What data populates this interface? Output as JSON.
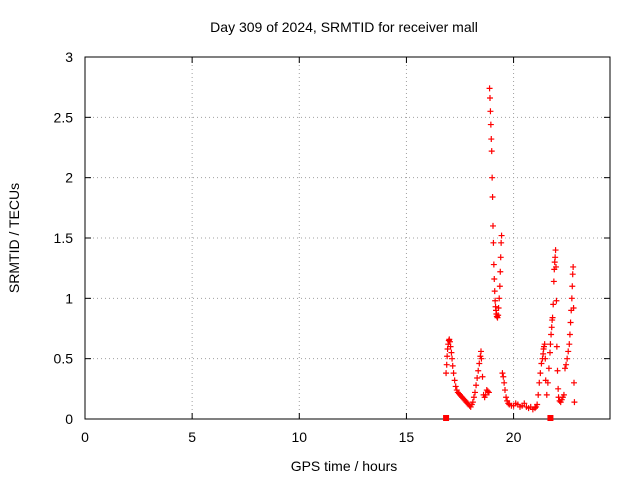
{
  "chart_data": {
    "type": "scatter",
    "title": "Day 309 of 2024, SRMTID for receiver mall",
    "xlabel": "GPS time / hours",
    "ylabel": "SRMTID / TECUs",
    "xlim": [
      0,
      24.5
    ],
    "ylim": [
      0,
      3
    ],
    "xticks": [
      0,
      5,
      10,
      15,
      20
    ],
    "xtick_labels": [
      "0",
      "5",
      "10",
      "15",
      "20"
    ],
    "yticks": [
      0,
      0.5,
      1,
      1.5,
      2,
      2.5,
      3
    ],
    "ytick_labels": [
      "0",
      "0.5",
      "1",
      "1.5",
      "2",
      "2.5",
      "3"
    ],
    "grid": true,
    "marker": "+",
    "series_color": "#ff0000",
    "series": [
      {
        "name": "SRMTID",
        "points": [
          [
            16.85,
            0.38
          ],
          [
            16.88,
            0.45
          ],
          [
            16.9,
            0.52
          ],
          [
            16.92,
            0.58
          ],
          [
            16.95,
            0.62
          ],
          [
            16.98,
            0.65
          ],
          [
            17.0,
            0.66
          ],
          [
            17.03,
            0.64
          ],
          [
            17.06,
            0.6
          ],
          [
            17.1,
            0.55
          ],
          [
            17.13,
            0.5
          ],
          [
            17.16,
            0.44
          ],
          [
            17.2,
            0.38
          ],
          [
            17.25,
            0.32
          ],
          [
            17.3,
            0.27
          ],
          [
            17.35,
            0.24
          ],
          [
            17.4,
            0.22
          ],
          [
            17.45,
            0.21
          ],
          [
            17.5,
            0.2
          ],
          [
            17.55,
            0.19
          ],
          [
            17.6,
            0.18
          ],
          [
            17.65,
            0.17
          ],
          [
            17.7,
            0.16
          ],
          [
            17.75,
            0.15
          ],
          [
            17.8,
            0.14
          ],
          [
            17.85,
            0.13
          ],
          [
            17.9,
            0.12
          ],
          [
            17.95,
            0.11
          ],
          [
            18.0,
            0.1
          ],
          [
            18.05,
            0.12
          ],
          [
            18.1,
            0.14
          ],
          [
            18.15,
            0.18
          ],
          [
            18.2,
            0.22
          ],
          [
            18.25,
            0.28
          ],
          [
            18.3,
            0.34
          ],
          [
            18.35,
            0.4
          ],
          [
            18.4,
            0.46
          ],
          [
            18.45,
            0.52
          ],
          [
            18.48,
            0.56
          ],
          [
            18.5,
            0.5
          ],
          [
            18.55,
            0.35
          ],
          [
            18.6,
            0.2
          ],
          [
            18.65,
            0.18
          ],
          [
            18.7,
            0.2
          ],
          [
            18.75,
            0.24
          ],
          [
            18.8,
            0.23
          ],
          [
            18.85,
            0.22
          ],
          [
            18.88,
            2.74
          ],
          [
            18.9,
            2.66
          ],
          [
            18.92,
            2.55
          ],
          [
            18.94,
            2.44
          ],
          [
            18.96,
            2.32
          ],
          [
            18.98,
            2.22
          ],
          [
            19.0,
            2.0
          ],
          [
            19.02,
            1.84
          ],
          [
            19.04,
            1.6
          ],
          [
            19.06,
            1.46
          ],
          [
            19.08,
            1.28
          ],
          [
            19.1,
            1.16
          ],
          [
            19.12,
            1.06
          ],
          [
            19.14,
            0.98
          ],
          [
            19.16,
            0.93
          ],
          [
            19.18,
            0.9
          ],
          [
            19.2,
            0.87
          ],
          [
            19.22,
            0.85
          ],
          [
            19.25,
            0.84
          ],
          [
            19.28,
            0.86
          ],
          [
            19.3,
            0.92
          ],
          [
            19.33,
            1.0
          ],
          [
            19.36,
            1.1
          ],
          [
            19.38,
            1.22
          ],
          [
            19.4,
            1.34
          ],
          [
            19.42,
            1.46
          ],
          [
            19.44,
            1.52
          ],
          [
            19.48,
            0.38
          ],
          [
            19.52,
            0.35
          ],
          [
            19.56,
            0.3
          ],
          [
            19.6,
            0.24
          ],
          [
            19.65,
            0.18
          ],
          [
            19.7,
            0.15
          ],
          [
            19.75,
            0.13
          ],
          [
            19.8,
            0.12
          ],
          [
            19.9,
            0.11
          ],
          [
            20.0,
            0.11
          ],
          [
            20.1,
            0.13
          ],
          [
            20.2,
            0.12
          ],
          [
            20.3,
            0.1
          ],
          [
            20.4,
            0.11
          ],
          [
            20.5,
            0.13
          ],
          [
            20.6,
            0.1
          ],
          [
            20.7,
            0.09
          ],
          [
            20.8,
            0.1
          ],
          [
            20.9,
            0.08
          ],
          [
            21.0,
            0.09
          ],
          [
            21.05,
            0.1
          ],
          [
            21.1,
            0.12
          ],
          [
            21.15,
            0.2
          ],
          [
            21.2,
            0.3
          ],
          [
            21.25,
            0.38
          ],
          [
            21.3,
            0.46
          ],
          [
            21.35,
            0.5
          ],
          [
            21.38,
            0.54
          ],
          [
            21.4,
            0.58
          ],
          [
            21.42,
            0.6
          ],
          [
            21.45,
            0.62
          ],
          [
            21.48,
            0.5
          ],
          [
            21.5,
            0.32
          ],
          [
            21.55,
            0.2
          ],
          [
            21.6,
            0.3
          ],
          [
            21.65,
            0.42
          ],
          [
            21.7,
            0.55
          ],
          [
            21.72,
            0.62
          ],
          [
            21.75,
            0.7
          ],
          [
            21.78,
            0.76
          ],
          [
            21.8,
            0.82
          ],
          [
            21.82,
            0.84
          ],
          [
            21.85,
            0.95
          ],
          [
            21.88,
            1.14
          ],
          [
            21.9,
            1.24
          ],
          [
            21.92,
            1.3
          ],
          [
            21.94,
            1.34
          ],
          [
            21.96,
            1.4
          ],
          [
            21.98,
            1.26
          ],
          [
            22.0,
            0.98
          ],
          [
            22.02,
            0.6
          ],
          [
            22.05,
            0.4
          ],
          [
            22.08,
            0.25
          ],
          [
            22.1,
            0.18
          ],
          [
            22.15,
            0.15
          ],
          [
            22.2,
            0.14
          ],
          [
            22.25,
            0.16
          ],
          [
            22.3,
            0.18
          ],
          [
            22.35,
            0.2
          ],
          [
            22.4,
            0.42
          ],
          [
            22.45,
            0.45
          ],
          [
            22.5,
            0.5
          ],
          [
            22.55,
            0.56
          ],
          [
            22.6,
            0.62
          ],
          [
            22.63,
            0.7
          ],
          [
            22.66,
            0.8
          ],
          [
            22.69,
            0.9
          ],
          [
            22.72,
            1.0
          ],
          [
            22.74,
            1.1
          ],
          [
            22.76,
            1.2
          ],
          [
            22.78,
            1.26
          ],
          [
            22.8,
            0.92
          ],
          [
            22.82,
            0.3
          ],
          [
            22.84,
            0.14
          ]
        ]
      }
    ],
    "square_markers": [
      [
        16.85,
        0.0
      ],
      [
        21.72,
        0.0
      ]
    ]
  }
}
